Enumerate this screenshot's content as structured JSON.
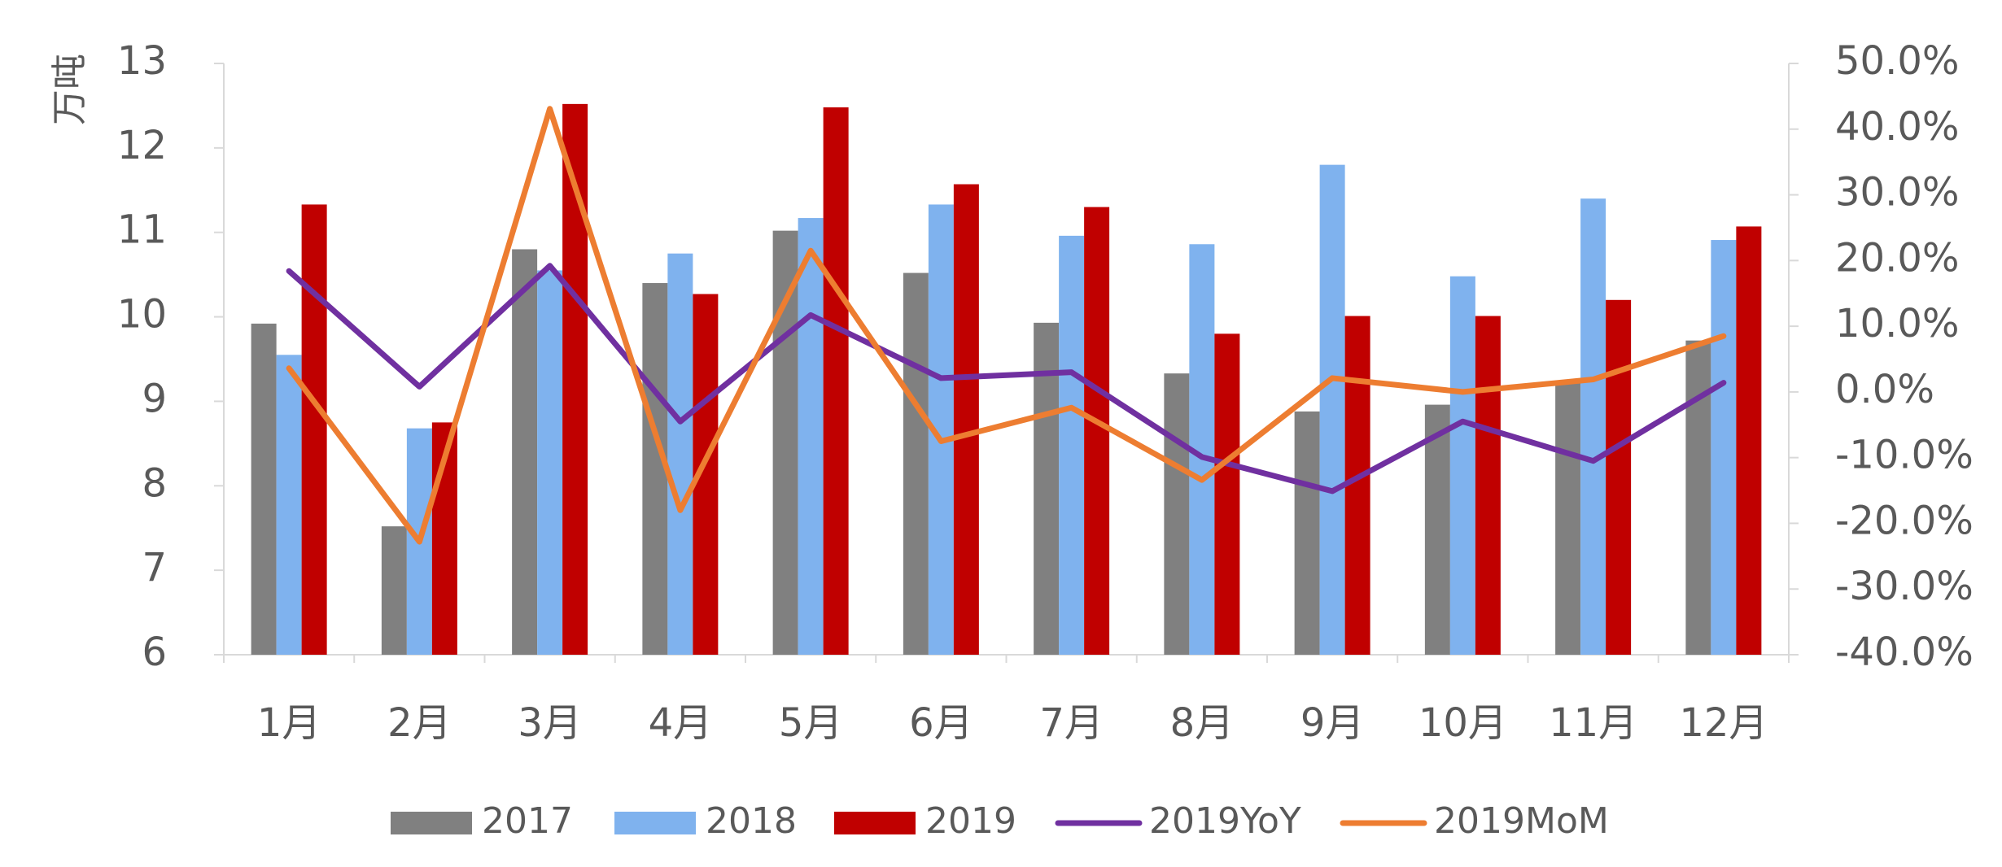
{
  "chart_data": {
    "type": "bar",
    "ylabel": "万吨",
    "ylim": [
      6,
      13
    ],
    "yticks": [
      "13",
      "12",
      "11",
      "10",
      "9",
      "8",
      "7",
      "6"
    ],
    "y2lim": [
      -0.4,
      0.5
    ],
    "y2ticks": [
      "50.0%",
      "40.0%",
      "30.0%",
      "20.0%",
      "10.0%",
      "0.0%",
      "-10.0%",
      "-20.0%",
      "-30.0%",
      "-40.0%"
    ],
    "categories": [
      "1月",
      "2月",
      "3月",
      "4月",
      "5月",
      "6月",
      "7月",
      "8月",
      "9月",
      "10月",
      "11月",
      "12月"
    ],
    "series": [
      {
        "name": "2017",
        "kind": "bar",
        "color": "#808080",
        "values": [
          9.92,
          7.52,
          10.8,
          10.4,
          11.02,
          10.52,
          9.93,
          9.33,
          8.88,
          8.96,
          9.22,
          9.72
        ]
      },
      {
        "name": "2018",
        "kind": "bar",
        "color": "#7FB2EE",
        "values": [
          9.55,
          8.68,
          10.55,
          10.75,
          11.17,
          11.33,
          10.96,
          10.86,
          11.8,
          10.48,
          11.4,
          10.91
        ]
      },
      {
        "name": "2019",
        "kind": "bar",
        "color": "#C00000",
        "values": [
          11.33,
          8.75,
          12.52,
          10.27,
          12.48,
          11.57,
          11.3,
          9.8,
          10.01,
          10.01,
          10.2,
          11.07
        ]
      },
      {
        "name": "2019YoY",
        "kind": "line",
        "axis": "right",
        "color": "#7030A0",
        "values": [
          0.184,
          0.008,
          0.192,
          -0.045,
          0.117,
          0.021,
          0.03,
          -0.099,
          -0.151,
          -0.045,
          -0.105,
          0.014
        ]
      },
      {
        "name": "2019MoM",
        "kind": "line",
        "axis": "right",
        "color": "#ED7D31",
        "values": [
          0.036,
          -0.228,
          0.431,
          -0.18,
          0.215,
          -0.075,
          -0.024,
          -0.134,
          0.021,
          0.0,
          0.019,
          0.085
        ]
      }
    ],
    "legend": "bottom",
    "grid": false
  }
}
